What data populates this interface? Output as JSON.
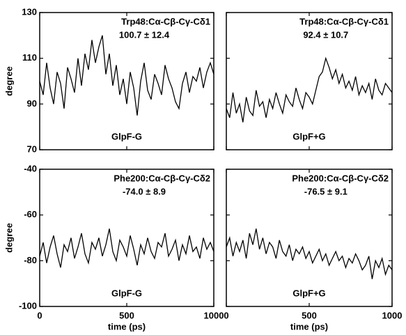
{
  "chart_data": [
    {
      "type": "line",
      "title": "Trp48:Cα-Cβ-Cγ-Cδ1",
      "stat": "100.7 ± 12.4",
      "label": "GlpF-G",
      "y_label": "degree",
      "x": [
        0,
        20,
        40,
        60,
        80,
        100,
        120,
        140,
        160,
        180,
        200,
        220,
        240,
        260,
        280,
        300,
        320,
        340,
        360,
        380,
        400,
        420,
        440,
        460,
        480,
        500,
        520,
        540,
        560,
        580,
        600,
        620,
        640,
        660,
        680,
        700,
        720,
        740,
        760,
        780,
        800,
        820,
        840,
        860,
        880,
        900,
        920,
        940,
        960,
        980,
        1000
      ],
      "values": [
        100,
        94,
        108,
        97,
        90,
        104,
        99,
        88,
        106,
        101,
        95,
        110,
        98,
        112,
        105,
        118,
        108,
        115,
        120,
        103,
        112,
        98,
        107,
        94,
        101,
        90,
        104,
        97,
        85,
        100,
        108,
        96,
        92,
        103,
        99,
        94,
        107,
        101,
        97,
        91,
        88,
        99,
        104,
        95,
        102,
        100,
        106,
        97,
        104,
        108,
        103
      ],
      "color": "#000000",
      "xlim": [
        0,
        1000
      ],
      "ylim": [
        70,
        130
      ],
      "yticks": [
        70,
        90,
        110,
        130
      ]
    },
    {
      "type": "line",
      "title": "Trp48:Cα-Cβ-Cγ-Cδ1",
      "stat": "92.4 ± 10.7",
      "label": "GlpF+G",
      "x": [
        0,
        20,
        40,
        60,
        80,
        100,
        120,
        140,
        160,
        180,
        200,
        220,
        240,
        260,
        280,
        300,
        320,
        340,
        360,
        380,
        400,
        420,
        440,
        460,
        480,
        500,
        520,
        540,
        560,
        580,
        600,
        620,
        640,
        660,
        680,
        700,
        720,
        740,
        760,
        780,
        800,
        820,
        840,
        860,
        880,
        900,
        920,
        940,
        960,
        980,
        1000
      ],
      "values": [
        88,
        84,
        95,
        86,
        90,
        82,
        93,
        87,
        85,
        96,
        89,
        91,
        84,
        92,
        88,
        95,
        90,
        86,
        94,
        91,
        89,
        97,
        92,
        88,
        95,
        93,
        90,
        96,
        102,
        104,
        110,
        106,
        101,
        105,
        99,
        103,
        97,
        100,
        96,
        102,
        94,
        98,
        95,
        99,
        92,
        101,
        96,
        94,
        99,
        97,
        95
      ],
      "color": "#000000",
      "xlim": [
        0,
        1000
      ],
      "ylim": [
        70,
        130
      ]
    },
    {
      "type": "line",
      "title": "Phe200:Cα-Cβ-Cγ-Cδ2",
      "stat": "-74.0 ± 8.9",
      "label": "GlpF-G",
      "y_label": "degree",
      "x_label": "time (ps)",
      "x": [
        0,
        20,
        40,
        60,
        80,
        100,
        120,
        140,
        160,
        180,
        200,
        220,
        240,
        260,
        280,
        300,
        320,
        340,
        360,
        380,
        400,
        420,
        440,
        460,
        480,
        500,
        520,
        540,
        560,
        580,
        600,
        620,
        640,
        660,
        680,
        700,
        720,
        740,
        760,
        780,
        800,
        820,
        840,
        860,
        880,
        900,
        920,
        940,
        960,
        980,
        1000
      ],
      "values": [
        -78,
        -72,
        -81,
        -74,
        -69,
        -77,
        -83,
        -73,
        -76,
        -70,
        -79,
        -74,
        -68,
        -77,
        -81,
        -72,
        -75,
        -70,
        -78,
        -73,
        -66,
        -76,
        -80,
        -71,
        -74,
        -78,
        -69,
        -75,
        -82,
        -73,
        -77,
        -70,
        -76,
        -79,
        -72,
        -74,
        -68,
        -78,
        -75,
        -71,
        -80,
        -73,
        -77,
        -69,
        -76,
        -74,
        -79,
        -70,
        -75,
        -72,
        -76
      ],
      "color": "#000000",
      "xlim": [
        0,
        1000
      ],
      "ylim": [
        -100,
        -40
      ],
      "yticks": [
        -100,
        -80,
        -60,
        -40
      ],
      "xticks": [
        0,
        500,
        1000
      ]
    },
    {
      "type": "line",
      "title": "Phe200:Cα-Cβ-Cγ-Cδ2",
      "stat": "-76.5 ± 9.1",
      "label": "GlpF+G",
      "x_label": "time (ps)",
      "x": [
        0,
        20,
        40,
        60,
        80,
        100,
        120,
        140,
        160,
        180,
        200,
        220,
        240,
        260,
        280,
        300,
        320,
        340,
        360,
        380,
        400,
        420,
        440,
        460,
        480,
        500,
        520,
        540,
        560,
        580,
        600,
        620,
        640,
        660,
        680,
        700,
        720,
        740,
        760,
        780,
        800,
        820,
        840,
        860,
        880,
        900,
        920,
        940,
        960,
        980,
        1000
      ],
      "values": [
        -74,
        -70,
        -78,
        -72,
        -76,
        -71,
        -79,
        -68,
        -73,
        -66,
        -75,
        -70,
        -77,
        -72,
        -74,
        -79,
        -71,
        -76,
        -78,
        -73,
        -80,
        -75,
        -77,
        -74,
        -79,
        -76,
        -81,
        -78,
        -75,
        -80,
        -77,
        -82,
        -79,
        -76,
        -80,
        -78,
        -83,
        -79,
        -81,
        -77,
        -80,
        -84,
        -82,
        -78,
        -88,
        -80,
        -83,
        -79,
        -86,
        -82,
        -84
      ],
      "color": "#000000",
      "xlim": [
        0,
        1000
      ],
      "ylim": [
        -100,
        -40
      ],
      "xticks": [
        0,
        500,
        1000
      ]
    }
  ]
}
